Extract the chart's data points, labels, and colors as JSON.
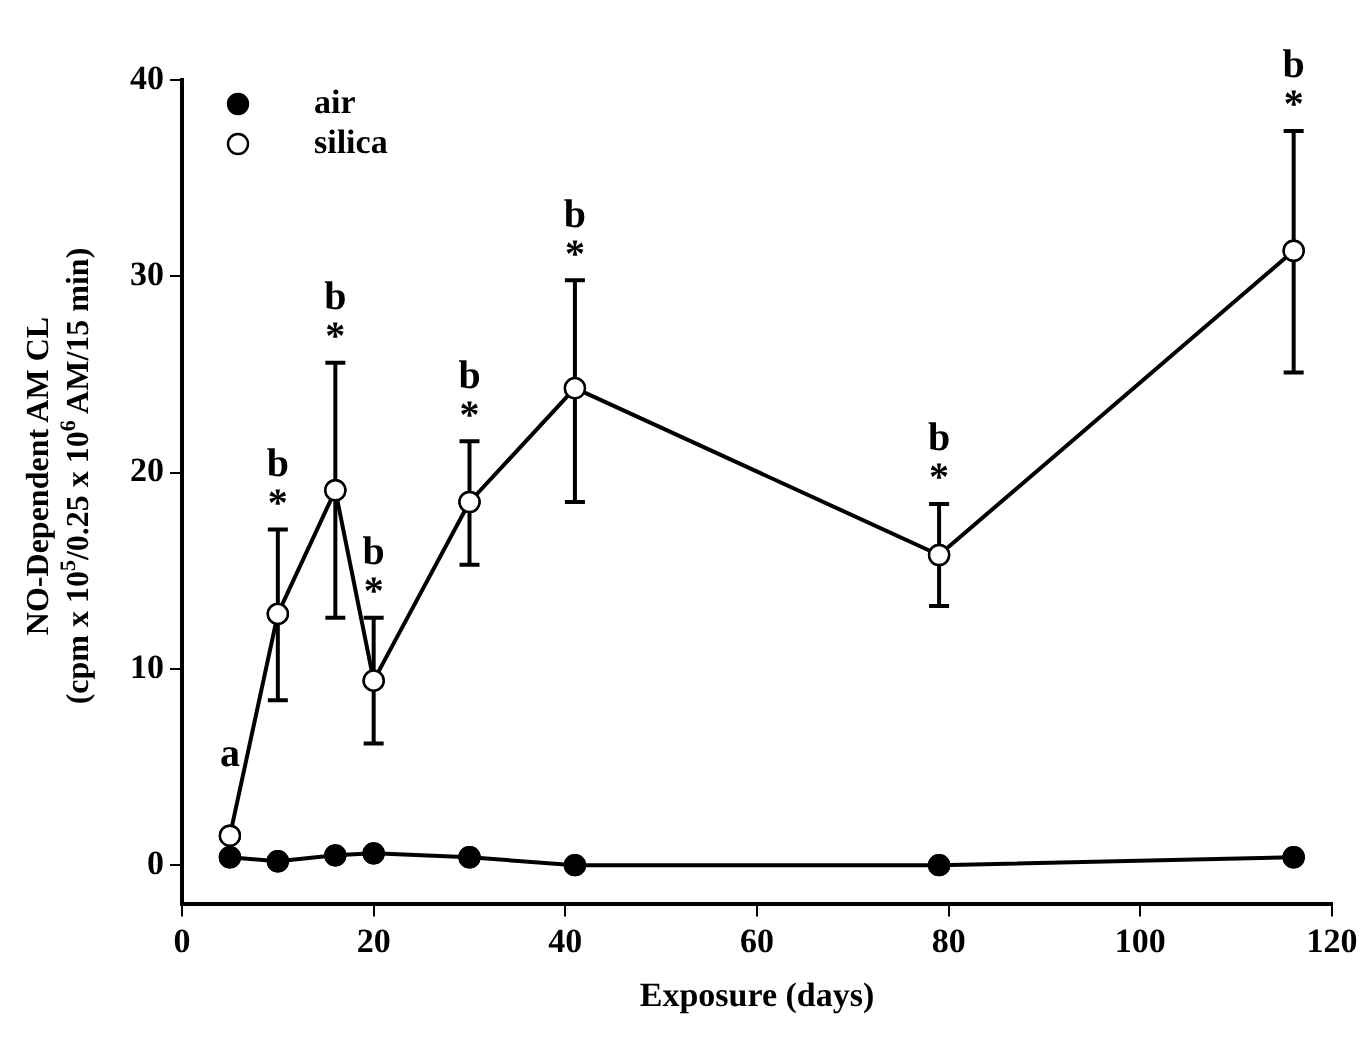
{
  "chart_data": {
    "type": "line",
    "xlabel": "Exposure (days)",
    "ylabel": "NO-Dependent AM CL\n(cpm x 10$^{5}$/0.25 x 10$^{6}$ AM/15 min)",
    "xlim": [
      0,
      120
    ],
    "xticks": [
      0,
      20,
      40,
      60,
      80,
      100,
      120
    ],
    "ylim": [
      -2,
      40
    ],
    "yticks": [
      0,
      10,
      20,
      30,
      40
    ],
    "legend": "top left",
    "marker": "circle",
    "line_style": "solid",
    "grid": false,
    "series": [
      {
        "name": "air",
        "color": "#000000",
        "x": [
          5,
          10,
          16,
          20,
          30,
          41,
          79,
          116
        ],
        "values": [
          0.4,
          0.2,
          0.5,
          0.6,
          0.4,
          0,
          0,
          0.4
        ]
      },
      {
        "name": "silica",
        "color": "#ffffff",
        "x": [
          5,
          10,
          16,
          20,
          30,
          41,
          79,
          116
        ],
        "values": [
          1.5,
          12.8,
          19.1,
          9.4,
          18.5,
          24.3,
          15.8,
          31.3
        ],
        "errors": [
          null,
          [
            8.4,
            17.1
          ],
          [
            12.6,
            25.6
          ],
          [
            6.2,
            12.6
          ],
          [
            15.3,
            21.6
          ],
          [
            18.5,
            29.8
          ],
          [
            13.2,
            18.4
          ],
          [
            25.1,
            37.4
          ]
        ]
      }
    ],
    "annotations": [
      {
        "text": "a",
        "x": 5,
        "y": 1.5
      },
      {
        "text": "*",
        "x": 10,
        "y": 17.1
      },
      {
        "text": "b",
        "x": 10,
        "y": 17.1
      },
      {
        "text": "*",
        "x": 16,
        "y": 25.6
      },
      {
        "text": "b",
        "x": 16,
        "y": 25.6
      },
      {
        "text": "*",
        "x": 20,
        "y": 12.6
      },
      {
        "text": "b",
        "x": 20,
        "y": 12.6
      },
      {
        "text": "*",
        "x": 30,
        "y": 21.6
      },
      {
        "text": "b",
        "x": 30,
        "y": 21.6
      },
      {
        "text": "*",
        "x": 41,
        "y": 29.8
      },
      {
        "text": "b",
        "x": 41,
        "y": 29.8
      },
      {
        "text": "*",
        "x": 79,
        "y": 18.4
      },
      {
        "text": "b",
        "x": 79,
        "y": 18.4
      },
      {
        "text": "*",
        "x": 116,
        "y": 37.4
      },
      {
        "text": "b",
        "x": 116,
        "y": 37.4
      }
    ]
  }
}
